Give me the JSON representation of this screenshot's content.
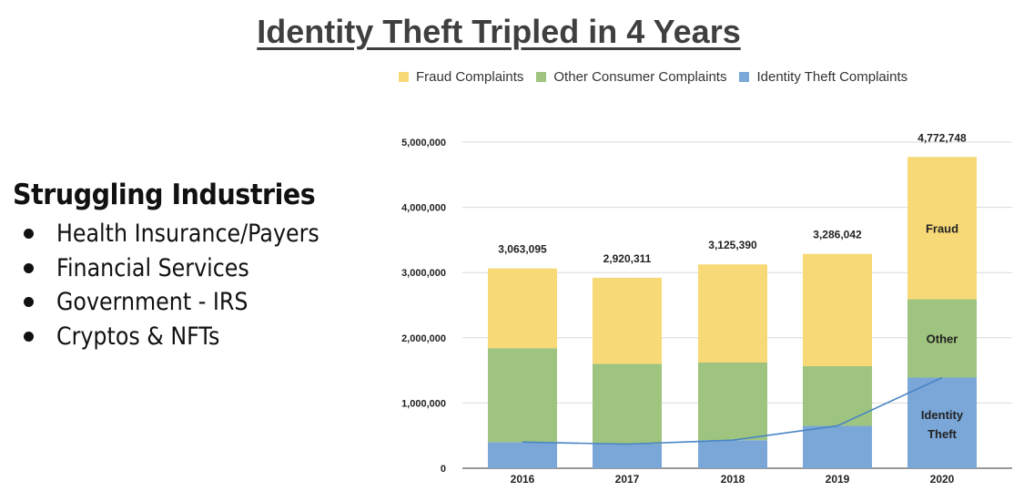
{
  "title": "Identity Theft Tripled in 4 Years",
  "left_panel": {
    "heading": "Struggling Industries",
    "items": [
      "Health Insurance/Payers",
      "Financial Services",
      "Government - IRS",
      "Cryptos & NFTs"
    ]
  },
  "colors": {
    "fraud": "#f8d978",
    "other": "#9ec47f",
    "identity": "#7aa7d8",
    "trend_line": "#4a84c4",
    "grid": "#d9d9d9"
  },
  "chart_data": {
    "type": "bar",
    "stacked": true,
    "categories": [
      "2016",
      "2017",
      "2018",
      "2019",
      "2020"
    ],
    "series": [
      {
        "name": "Fraud Complaints",
        "values": [
          1223095,
          1320311,
          1505390,
          1721042,
          2182748
        ]
      },
      {
        "name": "Other Consumer Complaints",
        "values": [
          1440000,
          1230000,
          1190000,
          915000,
          1200000
        ]
      },
      {
        "name": "Identity Theft Complaints",
        "values": [
          400000,
          370000,
          430000,
          650000,
          1390000
        ]
      }
    ],
    "totals": [
      "3,063,095",
      "2,920,311",
      "3,125,390",
      "3,286,042",
      "4,772,748"
    ],
    "y_ticks": [
      "0",
      "1,000,000",
      "2,000,000",
      "3,000,000",
      "4,000,000",
      "5,000,000"
    ],
    "ylim": [
      0,
      5000000
    ],
    "grid": true,
    "legend_position": "top",
    "segment_labels": {
      "fraud": "Fraud",
      "other": "Other",
      "identity": [
        "Identity",
        "Theft"
      ]
    },
    "trend_line_series": "Identity Theft Complaints"
  }
}
